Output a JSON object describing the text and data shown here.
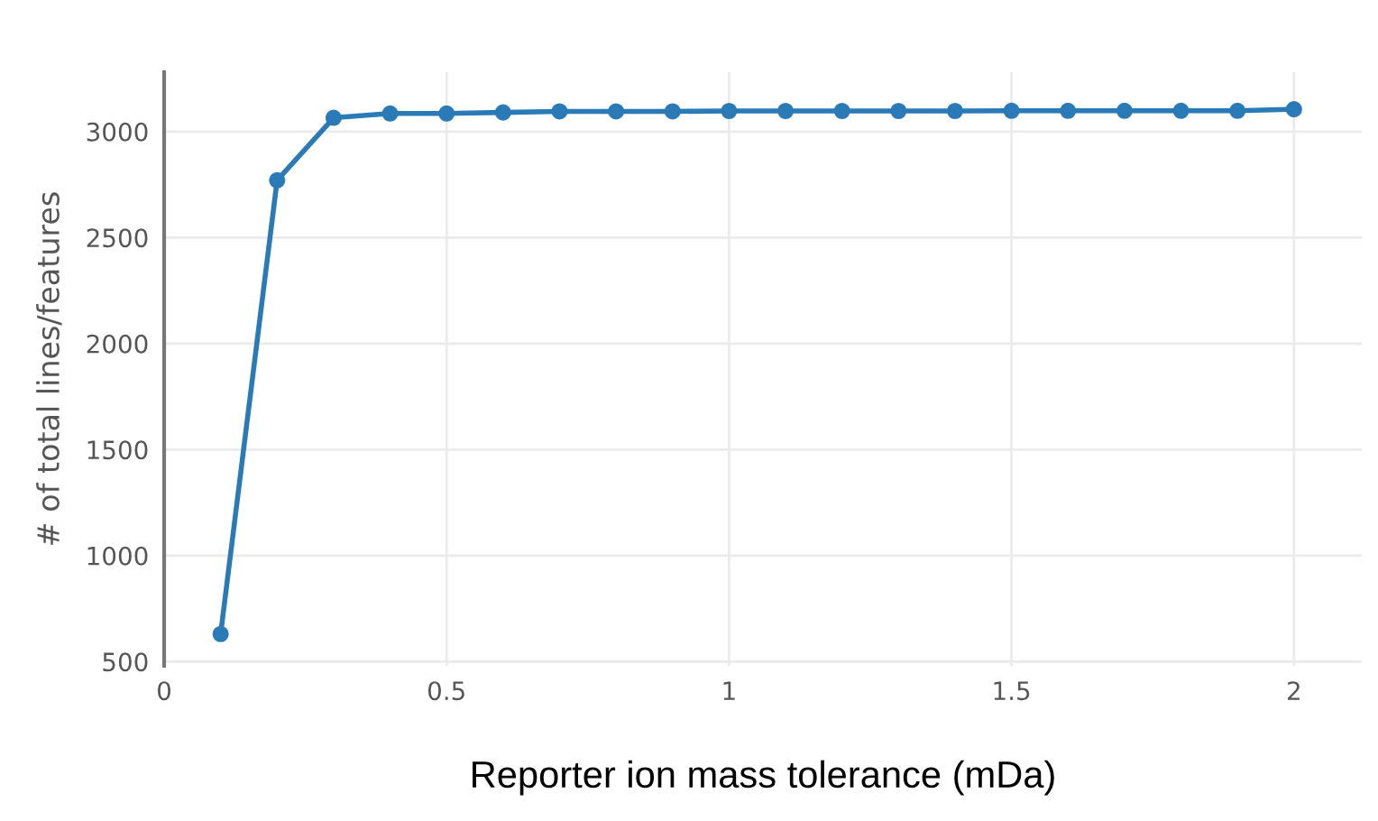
{
  "chart_data": {
    "type": "line",
    "xlabel": "Reporter ion mass tolerance (mDa)",
    "ylabel": "# of total lines/features",
    "x": [
      0.1,
      0.2,
      0.3,
      0.4,
      0.5,
      0.6,
      0.7,
      0.8,
      0.9,
      1.0,
      1.1,
      1.2,
      1.3,
      1.4,
      1.5,
      1.6,
      1.7,
      1.8,
      1.9,
      2.0
    ],
    "series": [
      {
        "color": "#2a7ab8",
        "values": [
          630,
          2770,
          3065,
          3085,
          3085,
          3090,
          3095,
          3095,
          3095,
          3097,
          3097,
          3097,
          3097,
          3097,
          3098,
          3098,
          3098,
          3098,
          3098,
          3105
        ]
      }
    ],
    "xlim": [
      0,
      2.12
    ],
    "ylim": [
      480,
      3280
    ],
    "xticks": [
      0,
      0.5,
      1,
      1.5,
      2
    ],
    "yticks": [
      500,
      1000,
      1500,
      2000,
      2500,
      3000
    ],
    "grid": true,
    "marker": "circle",
    "line_style": "solid"
  }
}
